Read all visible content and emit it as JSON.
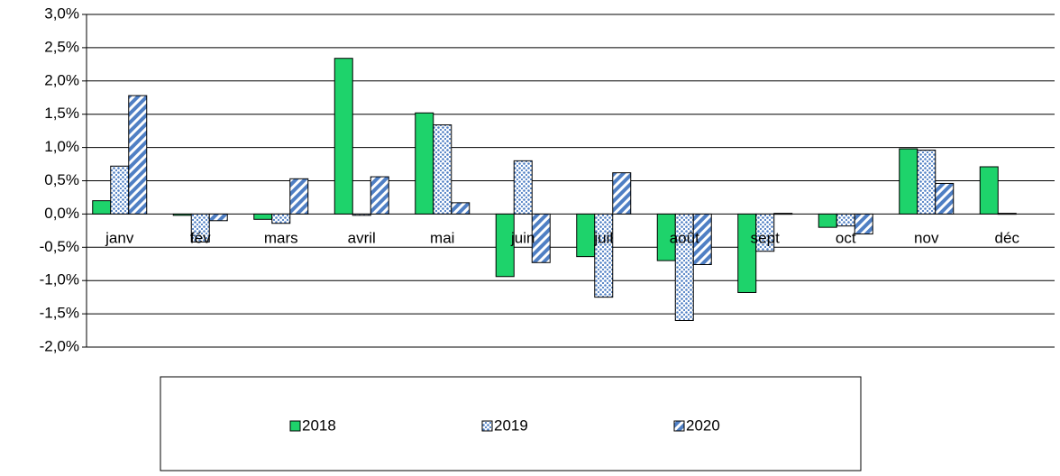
{
  "chart_data": {
    "type": "bar",
    "categories": [
      "janv",
      "fév",
      "mars",
      "avril",
      "mai",
      "juin",
      "juil",
      "août",
      "sept",
      "oct",
      "nov",
      "déc"
    ],
    "series": [
      {
        "name": "2018",
        "color": "#1ed36b",
        "pattern": "solid",
        "values": [
          0.2,
          -0.02,
          -0.08,
          2.34,
          1.52,
          -0.94,
          -0.64,
          -0.7,
          -1.18,
          -0.2,
          0.98,
          0.71
        ]
      },
      {
        "name": "2019",
        "color": "#4f7fc4",
        "pattern": "dots",
        "values": [
          0.72,
          -0.42,
          -0.14,
          -0.02,
          1.34,
          0.8,
          -1.25,
          -1.6,
          -0.56,
          -0.18,
          0.96,
          0.01
        ]
      },
      {
        "name": "2020",
        "color": "#4f7fc4",
        "pattern": "stripes",
        "values": [
          1.78,
          -0.1,
          0.53,
          0.56,
          0.17,
          -0.73,
          0.62,
          -0.76,
          0.01,
          -0.3,
          0.46,
          null
        ]
      }
    ],
    "ylim": [
      -2,
      3
    ],
    "yticks": [
      {
        "value": -2,
        "label": "-2,0%"
      },
      {
        "value": -1.5,
        "label": "-1,5%"
      },
      {
        "value": -1,
        "label": "-1,0%"
      },
      {
        "value": -0.5,
        "label": "-0,5%"
      },
      {
        "value": 0,
        "label": "0,0%"
      },
      {
        "value": 0.5,
        "label": "0,5%"
      },
      {
        "value": 1,
        "label": "1,0%"
      },
      {
        "value": 1.5,
        "label": "1,5%"
      },
      {
        "value": 2,
        "label": "2,0%"
      },
      {
        "value": 2.5,
        "label": "2,5%"
      },
      {
        "value": 3,
        "label": "3,0%"
      }
    ],
    "grid": true,
    "legend": "bottom"
  }
}
